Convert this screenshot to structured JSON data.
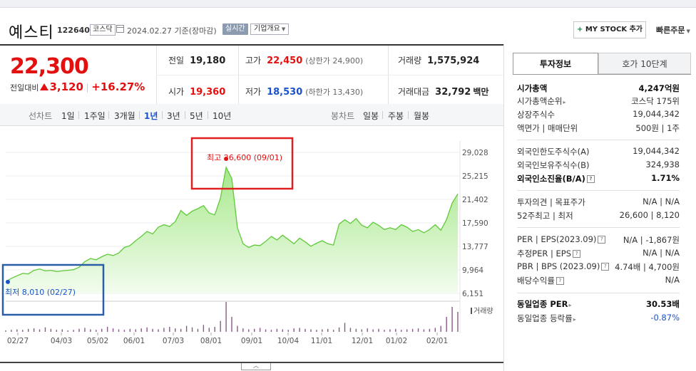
{
  "header": {
    "company": "예스티",
    "code": "122640",
    "market": "코스닥",
    "base_date": "2024.02.27 기준(장마감)",
    "realtime": "실시간",
    "overview": "기업개요",
    "my_stock": "MY STOCK 추가",
    "quick_order": "빠른주문"
  },
  "summary": {
    "price": "22,300",
    "diff_label": "전일대비",
    "diff": "3,120",
    "diff_rate": "+16.27%",
    "prev_label": "전일",
    "prev": "19,180",
    "high_label": "고가",
    "high": "22,450",
    "upper_limit": "(상한가 24,900)",
    "volume_label": "거래량",
    "volume": "1,575,924",
    "open_label": "시가",
    "open": "19,360",
    "low_label": "저가",
    "low": "18,530",
    "lower_limit": "(하한가 13,430)",
    "amount_label": "거래대금",
    "amount": "32,792",
    "amount_unit": "백만"
  },
  "periods": {
    "line_label": "선차트",
    "items": [
      "1일",
      "1주일",
      "3개월",
      "1년",
      "3년",
      "5년",
      "10년"
    ],
    "active": "1년",
    "candle_label": "봉차트",
    "candle_items": [
      "일봉",
      "주봉",
      "월봉"
    ]
  },
  "chart_data": {
    "type": "area",
    "y_ticks": [
      "29,028",
      "25,215",
      "21,402",
      "17,590",
      "13,777",
      "9,964",
      "6,151"
    ],
    "ylim": [
      6151,
      29028
    ],
    "x_ticks": [
      "02/27",
      "04/03",
      "05/02",
      "06/01",
      "07/03",
      "08/01",
      "09/01",
      "10/04",
      "11/01",
      "12/01",
      "01/02",
      "02/01"
    ],
    "volume_label": "거래량",
    "high_annotation": "최고 26,600 (09/01)",
    "low_annotation": "최저 8,010 (02/27)",
    "price": [
      8010,
      8600,
      9000,
      9400,
      9300,
      9900,
      10100,
      9800,
      9900,
      9700,
      9800,
      9900,
      10000,
      10400,
      11300,
      11800,
      11600,
      12100,
      12500,
      12300,
      12700,
      13600,
      13900,
      14700,
      15400,
      16200,
      15800,
      16900,
      17300,
      17000,
      17800,
      19600,
      18800,
      19500,
      19900,
      20400,
      19200,
      18900,
      21600,
      26600,
      24800,
      16800,
      14200,
      13600,
      14000,
      13900,
      14600,
      15400,
      14800,
      15600,
      14900,
      14200,
      15100,
      14500,
      13800,
      14300,
      14700,
      14200,
      14000,
      17400,
      18100,
      17500,
      18300,
      17200,
      16800,
      17700,
      17200,
      16500,
      16800,
      16500,
      17300,
      16900,
      16200,
      16500,
      16000,
      16500,
      17300,
      16400,
      18100,
      20800,
      22300
    ],
    "volume": [
      3,
      4,
      5,
      4,
      6,
      7,
      5,
      9,
      6,
      4,
      5,
      3,
      4,
      6,
      8,
      5,
      4,
      6,
      10,
      7,
      5,
      4,
      6,
      5,
      7,
      9,
      6,
      5,
      8,
      10,
      7,
      6,
      12,
      9,
      6,
      14,
      8,
      10,
      22,
      60,
      30,
      12,
      7,
      5,
      6,
      8,
      5,
      4,
      6,
      5,
      4,
      7,
      8,
      6,
      5,
      4,
      5,
      6,
      4,
      9,
      18,
      8,
      6,
      5,
      7,
      5,
      6,
      4,
      5,
      6,
      4,
      5,
      6,
      7,
      5,
      6,
      8,
      12,
      30,
      50,
      40
    ]
  },
  "invest": {
    "tab_on": "투자정보",
    "tab_off": "호가 10단계",
    "rows1": [
      {
        "k": "시가총액",
        "v": "4,247억원"
      },
      {
        "k": "시가총액순위",
        "v": "코스닥 175위"
      },
      {
        "k": "상장주식수",
        "v": "19,044,342"
      },
      {
        "k": "액면가 | 매매단위",
        "v": "500원 | 1주"
      }
    ],
    "rows2": [
      {
        "k": "외국인한도주식수(A)",
        "v": "19,044,342"
      },
      {
        "k": "외국인보유주식수(B)",
        "v": "324,938"
      },
      {
        "k": "외국인소진율(B/A)",
        "v": "1.71%"
      }
    ],
    "rows3": [
      {
        "k": "투자의견 | 목표주가",
        "v": "N/A | N/A"
      },
      {
        "k": "52주최고 | 최저",
        "v": "26,600 | 8,120"
      }
    ],
    "rows4": [
      {
        "k": "PER | EPS(2023.09)",
        "v": "N/A | -1,867원"
      },
      {
        "k": "추정PER | EPS",
        "v": "N/A | N/A"
      },
      {
        "k": "PBR | BPS (2023.09)",
        "v": "4.74배 | 4,700원"
      },
      {
        "k": "배당수익률",
        "v": "N/A"
      }
    ],
    "rows5": [
      {
        "k": "동일업종 PER",
        "v": "30.53배"
      },
      {
        "k": "동일업종 등락률",
        "v": "-0.87%"
      }
    ]
  },
  "colors": {
    "up": "#e31010",
    "down": "#1a53c9",
    "area": "#8edc6a",
    "highbox": "#e02020",
    "lowbox": "#2a5fa8"
  }
}
